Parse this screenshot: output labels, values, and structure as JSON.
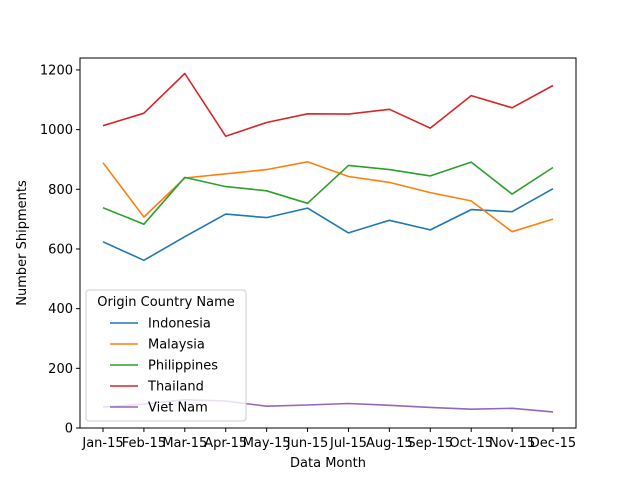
{
  "chart_data": {
    "type": "line",
    "title": "",
    "xlabel": "Data Month",
    "ylabel": "Number Shipments",
    "categories": [
      "Jan-15",
      "Feb-15",
      "Mar-15",
      "Apr-15",
      "May-15",
      "Jun-15",
      "Jul-15",
      "Aug-15",
      "Sep-15",
      "Oct-15",
      "Nov-15",
      "Dec-15"
    ],
    "ylim": [
      0,
      1240
    ],
    "yticks": [
      0,
      200,
      400,
      600,
      800,
      1000,
      1200
    ],
    "grid": false,
    "legend": {
      "title": "Origin Country Name",
      "placement": "lower-left"
    },
    "series": [
      {
        "name": "Indonesia",
        "color": "#1f77b4",
        "values": [
          624,
          562,
          641,
          717,
          705,
          737,
          654,
          696,
          664,
          732,
          725,
          802
        ]
      },
      {
        "name": "Malaysia",
        "color": "#ff7f0e",
        "values": [
          889,
          707,
          838,
          852,
          866,
          892,
          843,
          823,
          789,
          761,
          658,
          700
        ]
      },
      {
        "name": "Philippines",
        "color": "#2ca02c",
        "values": [
          738,
          683,
          840,
          809,
          795,
          753,
          880,
          866,
          845,
          891,
          784,
          873
        ]
      },
      {
        "name": "Thailand",
        "color": "#d62728",
        "values": [
          1013,
          1055,
          1188,
          978,
          1024,
          1053,
          1052,
          1068,
          1005,
          1114,
          1073,
          1148
        ]
      },
      {
        "name": "Viet Nam",
        "color": "#9467bd",
        "values": [
          70,
          80,
          95,
          90,
          73,
          77,
          82,
          76,
          69,
          63,
          66,
          54
        ]
      }
    ]
  }
}
